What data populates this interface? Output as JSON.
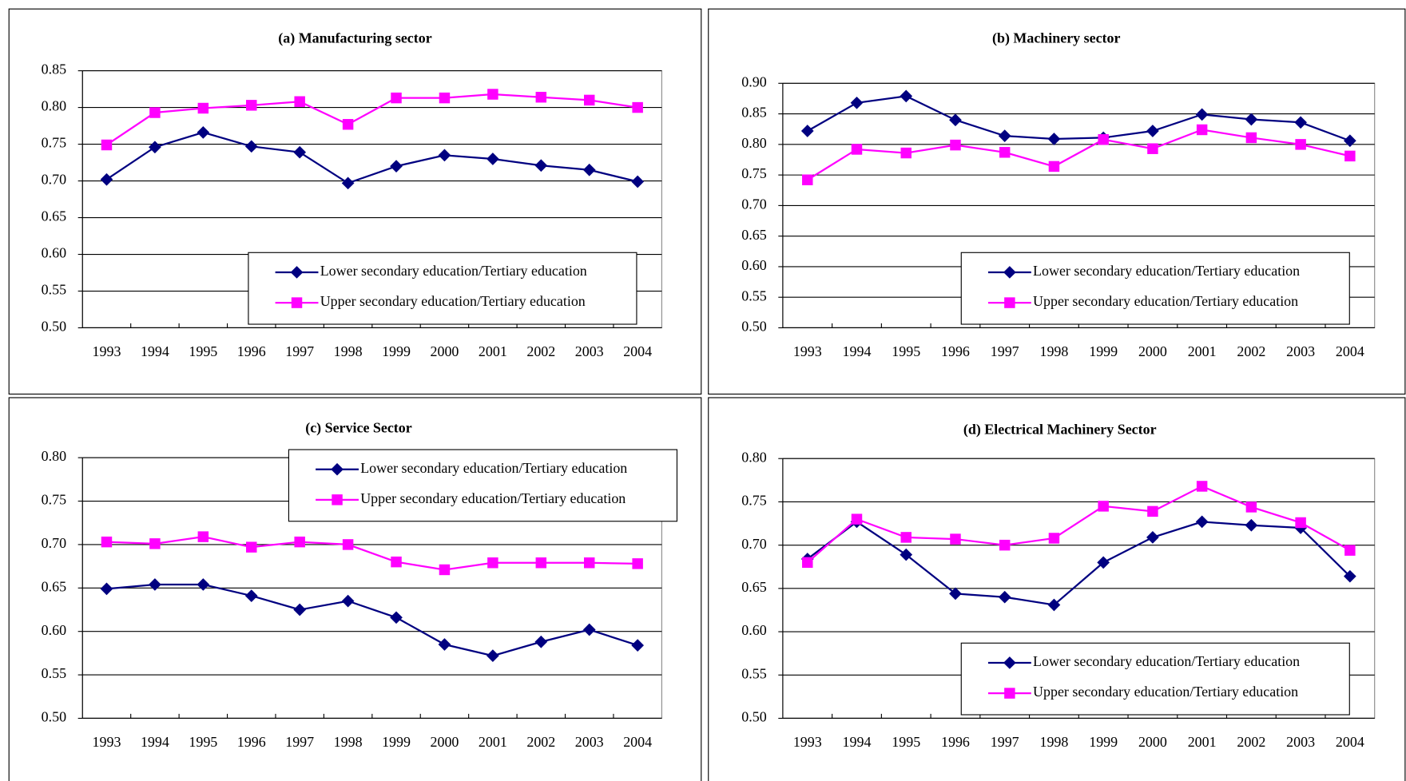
{
  "chart_data": [
    {
      "type": "line",
      "title": "(a) Manufacturing sector",
      "categories": [
        "1993",
        "1994",
        "1995",
        "1996",
        "1997",
        "1998",
        "1999",
        "2000",
        "2001",
        "2002",
        "2003",
        "2004"
      ],
      "series": [
        {
          "name": "Lower secondary education/Tertiary education",
          "color": "#000080",
          "marker": "diamond",
          "values": [
            0.702,
            0.746,
            0.766,
            0.747,
            0.739,
            0.697,
            0.72,
            0.735,
            0.73,
            0.721,
            0.715,
            0.699
          ]
        },
        {
          "name": "Upper secondary education/Tertiary education",
          "color": "#ff00ff",
          "marker": "square",
          "values": [
            0.749,
            0.793,
            0.799,
            0.803,
            0.808,
            0.777,
            0.813,
            0.813,
            0.818,
            0.814,
            0.81,
            0.8
          ]
        }
      ],
      "ylim": [
        0.5,
        0.85
      ],
      "yticks": [
        {
          "value": 0.5,
          "label": "0.50"
        },
        0.55,
        {
          "value": 0.6,
          "label": "0.60"
        },
        0.65,
        {
          "value": 0.7,
          "label": "0.70"
        },
        0.75,
        {
          "value": 0.8,
          "label": "0.80"
        },
        0.85
      ],
      "grid": true,
      "legend": "lower right"
    },
    {
      "type": "line",
      "title": "(b) Machinery sector",
      "categories": [
        "1993",
        "1994",
        "1995",
        "1996",
        "1997",
        "1998",
        "1999",
        "2000",
        "2001",
        "2002",
        "2003",
        "2004"
      ],
      "series": [
        {
          "name": "Lower secondary education/Tertiary education",
          "color": "#000080",
          "marker": "diamond",
          "values": [
            0.822,
            0.868,
            0.879,
            0.84,
            0.814,
            0.809,
            0.811,
            0.822,
            0.849,
            0.841,
            0.836,
            0.806
          ]
        },
        {
          "name": "Upper secondary education/Tertiary education",
          "color": "#ff00ff",
          "marker": "square",
          "values": [
            0.742,
            0.792,
            0.786,
            0.799,
            0.787,
            0.764,
            0.808,
            0.793,
            0.824,
            0.811,
            0.8,
            0.781
          ]
        }
      ],
      "ylim": [
        0.5,
        0.9
      ],
      "yticks": [
        {
          "value": 0.5,
          "label": "0.50"
        },
        0.55,
        {
          "value": 0.6,
          "label": "0.60"
        },
        0.65,
        {
          "value": 0.7,
          "label": "0.70"
        },
        0.75,
        {
          "value": 0.8,
          "label": "0.80"
        },
        0.85,
        {
          "value": 0.9,
          "label": "0.90"
        }
      ],
      "grid": true,
      "legend": "lower right"
    },
    {
      "type": "line",
      "title": "(c) Service Sector",
      "categories": [
        "1993",
        "1994",
        "1995",
        "1996",
        "1997",
        "1998",
        "1999",
        "2000",
        "2001",
        "2002",
        "2003",
        "2004"
      ],
      "series": [
        {
          "name": "Lower secondary education/Tertiary education",
          "color": "#000080",
          "marker": "diamond",
          "values": [
            0.649,
            0.654,
            0.654,
            0.641,
            0.625,
            0.635,
            0.616,
            0.585,
            0.572,
            0.588,
            0.602,
            0.584
          ]
        },
        {
          "name": "Upper secondary education/Tertiary education",
          "color": "#ff00ff",
          "marker": "square",
          "values": [
            0.703,
            0.701,
            0.709,
            0.697,
            0.703,
            0.7,
            0.68,
            0.671,
            0.679,
            0.679,
            0.679,
            0.678
          ]
        }
      ],
      "ylim": [
        0.5,
        0.8
      ],
      "yticks": [
        {
          "value": 0.5,
          "label": "0.50"
        },
        0.55,
        {
          "value": 0.6,
          "label": "0.60"
        },
        0.65,
        {
          "value": 0.7,
          "label": "0.70"
        },
        0.75,
        {
          "value": 0.8,
          "label": "0.80"
        }
      ],
      "grid": true,
      "legend": "upper right"
    },
    {
      "type": "line",
      "title": "(d) Electrical Machinery Sector",
      "categories": [
        "1993",
        "1994",
        "1995",
        "1996",
        "1997",
        "1998",
        "1999",
        "2000",
        "2001",
        "2002",
        "2003",
        "2004"
      ],
      "series": [
        {
          "name": "Lower secondary education/Tertiary education",
          "color": "#000080",
          "marker": "diamond",
          "values": [
            0.684,
            0.727,
            0.689,
            0.644,
            0.64,
            0.631,
            0.68,
            0.709,
            0.727,
            0.723,
            0.72,
            0.664
          ]
        },
        {
          "name": "Upper secondary education/Tertiary education",
          "color": "#ff00ff",
          "marker": "square",
          "values": [
            0.68,
            0.73,
            0.709,
            0.707,
            0.7,
            0.708,
            0.745,
            0.739,
            0.768,
            0.744,
            0.726,
            0.694
          ]
        }
      ],
      "ylim": [
        0.5,
        0.8
      ],
      "yticks": [
        {
          "value": 0.5,
          "label": "0.50"
        },
        0.55,
        {
          "value": 0.6,
          "label": "0.60"
        },
        0.65,
        {
          "value": 0.7,
          "label": "0.70"
        },
        0.75,
        {
          "value": 0.8,
          "label": "0.80"
        }
      ],
      "grid": true,
      "legend": "lower right"
    }
  ]
}
